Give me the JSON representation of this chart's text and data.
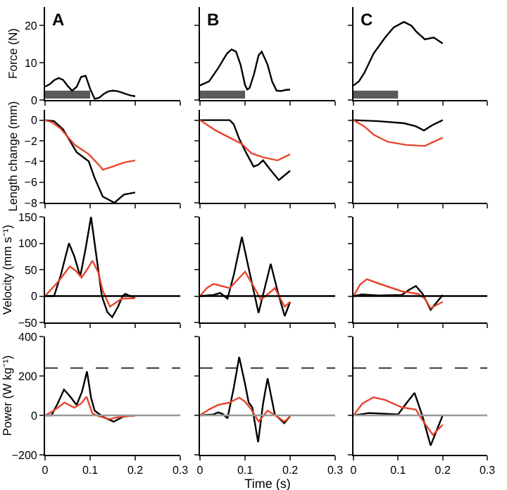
{
  "chart_data": [
    {
      "type": "line",
      "title": "A",
      "ylabel": "Force (N)",
      "xlim": [
        0,
        0.3
      ],
      "xticks": [
        0,
        0.1,
        0.2,
        0.3
      ],
      "ylim": [
        0,
        25
      ],
      "yticks": [
        0,
        10,
        20
      ],
      "tick_labels": "y",
      "grid": false,
      "bands": [
        {
          "axis": "x",
          "from": 0,
          "to": 0.1,
          "color": "#5a5a5a"
        }
      ],
      "series": [
        {
          "color": "#000000",
          "x": [
            0,
            0.01,
            0.02,
            0.03,
            0.04,
            0.05,
            0.06,
            0.07,
            0.08,
            0.09,
            0.1,
            0.11,
            0.12,
            0.13,
            0.14,
            0.15,
            0.16,
            0.17,
            0.18,
            0.19,
            0.2
          ],
          "values": [
            3.6,
            4.2,
            5.3,
            5.9,
            5.4,
            3.8,
            2.5,
            3.5,
            6.2,
            6.5,
            3,
            0.3,
            0.6,
            1.6,
            2.3,
            2.5,
            2.4,
            2,
            1.6,
            1.2,
            1
          ]
        }
      ]
    },
    {
      "type": "line",
      "title": "B",
      "xlim": [
        0,
        0.3
      ],
      "xticks": [
        0,
        0.1,
        0.2,
        0.3
      ],
      "ylim": [
        0,
        25
      ],
      "yticks": [
        0,
        10,
        20
      ],
      "tick_labels": false,
      "grid": false,
      "bands": [
        {
          "axis": "x",
          "from": 0,
          "to": 0.1,
          "color": "#5a5a5a"
        }
      ],
      "series": [
        {
          "color": "#000000",
          "x": [
            0,
            0.02,
            0.04,
            0.06,
            0.07,
            0.08,
            0.09,
            0.1,
            0.105,
            0.11,
            0.12,
            0.13,
            0.137,
            0.15,
            0.16,
            0.17,
            0.18,
            0.19,
            0.2
          ],
          "values": [
            3.9,
            5,
            8.5,
            12.5,
            13.6,
            13,
            9.5,
            4,
            2.8,
            3.2,
            7,
            12,
            13,
            9.5,
            5,
            2.5,
            2.4,
            2.7,
            2.8
          ]
        }
      ]
    },
    {
      "type": "line",
      "title": "C",
      "xlim": [
        0,
        0.3
      ],
      "xticks": [
        0,
        0.1,
        0.2,
        0.3
      ],
      "ylim": [
        0,
        25
      ],
      "yticks": [
        0,
        10,
        20
      ],
      "tick_labels": false,
      "grid": false,
      "bands": [
        {
          "axis": "x",
          "from": 0,
          "to": 0.1,
          "color": "#5a5a5a"
        }
      ],
      "series": [
        {
          "color": "#000000",
          "x": [
            0,
            0.012,
            0.024,
            0.045,
            0.071,
            0.09,
            0.113,
            0.13,
            0.14,
            0.16,
            0.18,
            0.2
          ],
          "values": [
            3.9,
            5,
            7.2,
            12.5,
            16.8,
            19.5,
            21,
            20,
            18.5,
            16.3,
            16.8,
            15.2
          ]
        }
      ]
    },
    {
      "type": "line",
      "ylabel": "Length change (mm)",
      "xlim": [
        0,
        0.3
      ],
      "xticks": [
        0,
        0.1,
        0.2,
        0.3
      ],
      "ylim": [
        -8,
        1
      ],
      "yticks": [
        0,
        -2,
        -4,
        -6,
        -8
      ],
      "tick_labels": "y",
      "grid": false,
      "series": [
        {
          "color": "#000000",
          "x": [
            0,
            0.02,
            0.04,
            0.055,
            0.07,
            0.097,
            0.11,
            0.128,
            0.154,
            0.175,
            0.2
          ],
          "values": [
            0,
            -0.1,
            -0.9,
            -2,
            -3.1,
            -4,
            -5.6,
            -7.4,
            -8,
            -7.2,
            -7
          ]
        },
        {
          "color": "#e8452c",
          "x": [
            0,
            0.015,
            0.034,
            0.066,
            0.097,
            0.123,
            0.128,
            0.15,
            0.175,
            0.2
          ],
          "values": [
            0,
            -0.2,
            -0.8,
            -2.4,
            -3.3,
            -4.5,
            -4.8,
            -4.5,
            -4.1,
            -3.9
          ]
        }
      ]
    },
    {
      "type": "line",
      "xlim": [
        0,
        0.3
      ],
      "xticks": [
        0,
        0.1,
        0.2,
        0.3
      ],
      "ylim": [
        -8,
        1
      ],
      "yticks": [
        0,
        -2,
        -4,
        -6,
        -8
      ],
      "tick_labels": false,
      "grid": false,
      "series": [
        {
          "color": "#000000",
          "x": [
            0,
            0.066,
            0.075,
            0.087,
            0.103,
            0.119,
            0.13,
            0.14,
            0.156,
            0.175,
            0.2
          ],
          "values": [
            0,
            0,
            -0.4,
            -1.8,
            -3.2,
            -4.5,
            -4.3,
            -3.9,
            -4.8,
            -5.8,
            -4.9
          ]
        },
        {
          "color": "#e8452c",
          "x": [
            0,
            0.035,
            0.066,
            0.093,
            0.114,
            0.14,
            0.172,
            0.2
          ],
          "values": [
            0,
            -1,
            -1.7,
            -2.3,
            -3.2,
            -3.6,
            -3.9,
            -3.3
          ]
        }
      ]
    },
    {
      "type": "line",
      "xlim": [
        0,
        0.3
      ],
      "xticks": [
        0,
        0.1,
        0.2,
        0.3
      ],
      "ylim": [
        -8,
        1
      ],
      "yticks": [
        0,
        -2,
        -4,
        -6,
        -8
      ],
      "tick_labels": false,
      "grid": false,
      "series": [
        {
          "color": "#000000",
          "x": [
            0,
            0.056,
            0.113,
            0.14,
            0.158,
            0.176,
            0.2
          ],
          "values": [
            0,
            -0.1,
            -0.3,
            -0.6,
            -1,
            -0.5,
            0
          ]
        },
        {
          "color": "#e8452c",
          "x": [
            0,
            0.024,
            0.045,
            0.077,
            0.119,
            0.16,
            0.18,
            0.2
          ],
          "values": [
            0,
            -0.6,
            -1.4,
            -2.1,
            -2.4,
            -2.5,
            -2.1,
            -1.7
          ]
        }
      ]
    },
    {
      "type": "line",
      "ylabel": "Velocity (mm s⁻¹)",
      "xlim": [
        0,
        0.3
      ],
      "xticks": [
        0,
        0.1,
        0.2,
        0.3
      ],
      "ylim": [
        -50,
        150
      ],
      "yticks": [
        -50,
        0,
        50,
        100,
        150
      ],
      "tick_labels": "y",
      "grid": false,
      "ref_lines": [
        {
          "axis": "y",
          "value": 0,
          "color": "#000000"
        }
      ],
      "series": [
        {
          "color": "#000000",
          "x": [
            0,
            0.02,
            0.035,
            0.053,
            0.065,
            0.078,
            0.09,
            0.102,
            0.114,
            0.126,
            0.138,
            0.149,
            0.162,
            0.172,
            0.178,
            0.2
          ],
          "values": [
            0,
            0,
            40,
            100,
            75,
            37,
            90,
            150,
            75,
            0,
            -30,
            -40,
            -20,
            0,
            4,
            -4
          ]
        },
        {
          "color": "#e8452c",
          "x": [
            0,
            0.03,
            0.055,
            0.068,
            0.081,
            0.093,
            0.105,
            0.118,
            0.128,
            0.144,
            0.17,
            0.2
          ],
          "values": [
            0,
            28,
            56,
            48,
            35,
            50,
            67,
            45,
            10,
            -20,
            -5,
            -4
          ]
        }
      ]
    },
    {
      "type": "line",
      "xlim": [
        0,
        0.3
      ],
      "xticks": [
        0,
        0.1,
        0.2,
        0.3
      ],
      "ylim": [
        -50,
        150
      ],
      "yticks": [
        -50,
        0,
        50,
        100,
        150
      ],
      "tick_labels": false,
      "grid": false,
      "ref_lines": [
        {
          "axis": "y",
          "value": 0,
          "color": "#000000"
        }
      ],
      "series": [
        {
          "color": "#000000",
          "x": [
            0,
            0.03,
            0.045,
            0.061,
            0.075,
            0.093,
            0.11,
            0.13,
            0.145,
            0.157,
            0.172,
            0.188,
            0.2
          ],
          "values": [
            0,
            2,
            6,
            -5,
            40,
            112,
            45,
            -32,
            20,
            61,
            10,
            -38,
            -11
          ]
        },
        {
          "color": "#e8452c",
          "x": [
            0,
            0.015,
            0.03,
            0.066,
            0.1,
            0.118,
            0.135,
            0.15,
            0.166,
            0.188,
            0.2
          ],
          "values": [
            0,
            15,
            23,
            15,
            46,
            20,
            -7,
            3,
            15,
            -20,
            -11
          ]
        }
      ]
    },
    {
      "type": "line",
      "xlim": [
        0,
        0.3
      ],
      "xticks": [
        0,
        0.1,
        0.2,
        0.3
      ],
      "ylim": [
        -50,
        150
      ],
      "yticks": [
        -50,
        0,
        50,
        100,
        150
      ],
      "tick_labels": false,
      "grid": false,
      "ref_lines": [
        {
          "axis": "y",
          "value": 0,
          "color": "#000000"
        }
      ],
      "series": [
        {
          "color": "#000000",
          "x": [
            0,
            0.019,
            0.056,
            0.108,
            0.125,
            0.14,
            0.155,
            0.173,
            0.2
          ],
          "values": [
            0,
            3,
            1,
            2,
            12,
            19,
            4,
            -26,
            2
          ]
        },
        {
          "color": "#e8452c",
          "x": [
            0,
            0.015,
            0.03,
            0.056,
            0.108,
            0.145,
            0.16,
            0.173,
            0.2
          ],
          "values": [
            0,
            22,
            32,
            24,
            9,
            4,
            -5,
            -23,
            -11
          ]
        }
      ]
    },
    {
      "type": "line",
      "ylabel": "Power (W kg⁻¹)",
      "xlim": [
        0,
        0.3
      ],
      "xticks": [
        0,
        0.1,
        0.2,
        0.3
      ],
      "ylim": [
        -200,
        400
      ],
      "yticks": [
        -200,
        0,
        200,
        400
      ],
      "grid": false,
      "ref_lines": [
        {
          "axis": "y",
          "value": 0,
          "color": "#999999"
        },
        {
          "axis": "y",
          "value": 240,
          "color": "#000000",
          "line_style": "dashed"
        }
      ],
      "series": [
        {
          "color": "#000000",
          "x": [
            0,
            0.014,
            0.028,
            0.042,
            0.056,
            0.07,
            0.082,
            0.093,
            0.102,
            0.11,
            0.128,
            0.152,
            0.175,
            0.2
          ],
          "values": [
            0,
            0,
            60,
            131,
            95,
            53,
            120,
            223,
            90,
            24,
            -7,
            -32,
            -5,
            0
          ]
        },
        {
          "color": "#e8452c",
          "x": [
            0,
            0.02,
            0.043,
            0.065,
            0.08,
            0.092,
            0.105,
            0.12,
            0.143,
            0.16,
            0.2
          ],
          "values": [
            0,
            25,
            65,
            39,
            60,
            95,
            10,
            -5,
            -19,
            -10,
            0
          ]
        }
      ]
    },
    {
      "type": "line",
      "xlabel": "Time (s)",
      "xlim": [
        0,
        0.3
      ],
      "xticks": [
        0,
        0.1,
        0.2,
        0.3
      ],
      "ylim": [
        -200,
        400
      ],
      "yticks": [
        -200,
        0,
        200,
        400
      ],
      "tick_labels": "x",
      "grid": false,
      "ref_lines": [
        {
          "axis": "y",
          "value": 0,
          "color": "#999999"
        },
        {
          "axis": "y",
          "value": 240,
          "color": "#000000",
          "line_style": "dashed"
        }
      ],
      "series": [
        {
          "color": "#000000",
          "x": [
            0,
            0.03,
            0.04,
            0.05,
            0.061,
            0.075,
            0.087,
            0.1,
            0.108,
            0.116,
            0.129,
            0.14,
            0.15,
            0.166,
            0.187,
            0.2
          ],
          "values": [
            0,
            5,
            15,
            8,
            -15,
            140,
            296,
            160,
            65,
            41,
            -136,
            60,
            188,
            5,
            -39,
            -5
          ]
        },
        {
          "color": "#e8452c",
          "x": [
            0,
            0.02,
            0.04,
            0.066,
            0.087,
            0.1,
            0.114,
            0.13,
            0.15,
            0.172,
            0.187,
            0.2
          ],
          "values": [
            0,
            30,
            53,
            65,
            90,
            70,
            29,
            -31,
            24,
            -7,
            -31,
            -7
          ]
        }
      ]
    },
    {
      "type": "line",
      "xlim": [
        0,
        0.3
      ],
      "xticks": [
        0,
        0.1,
        0.2,
        0.3
      ],
      "ylim": [
        -200,
        400
      ],
      "yticks": [
        -200,
        0,
        200,
        400
      ],
      "tick_labels": "x",
      "grid": false,
      "ref_lines": [
        {
          "axis": "y",
          "value": 0,
          "color": "#999999"
        },
        {
          "axis": "y",
          "value": 240,
          "color": "#000000",
          "line_style": "dashed"
        }
      ],
      "series": [
        {
          "color": "#000000",
          "x": [
            0,
            0.035,
            0.07,
            0.1,
            0.118,
            0.137,
            0.155,
            0.173,
            0.2
          ],
          "values": [
            0,
            12,
            8,
            5,
            60,
            114,
            -7,
            -153,
            0
          ]
        },
        {
          "color": "#e8452c",
          "x": [
            0,
            0.02,
            0.045,
            0.071,
            0.108,
            0.14,
            0.157,
            0.178,
            0.2
          ],
          "values": [
            0,
            60,
            92,
            78,
            41,
            29,
            -32,
            -99,
            -48
          ]
        }
      ]
    }
  ]
}
